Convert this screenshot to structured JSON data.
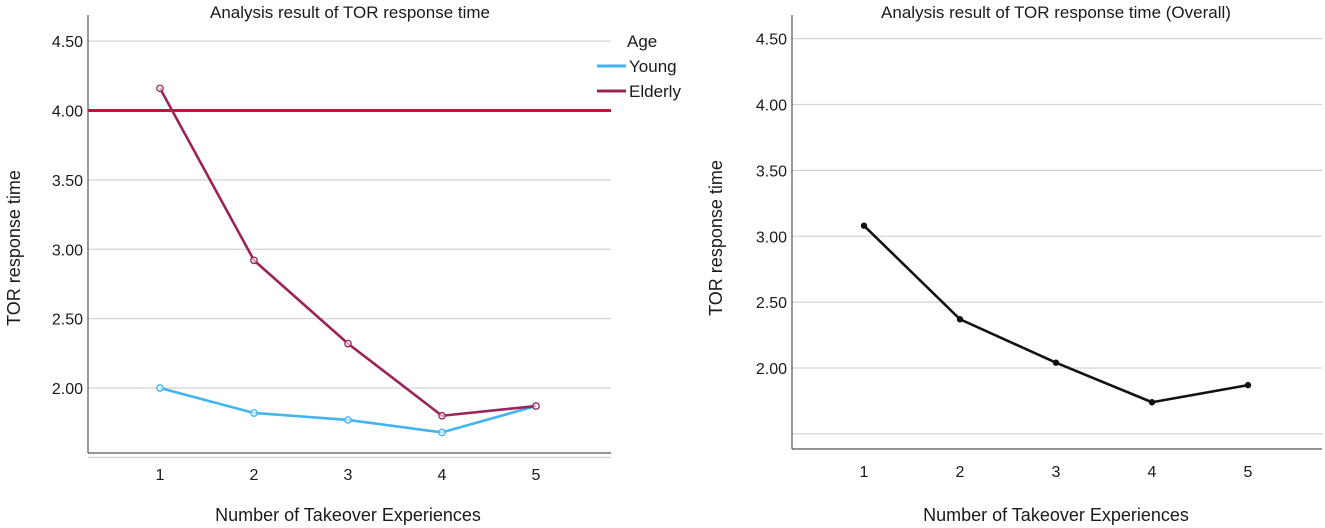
{
  "chart_data": [
    {
      "type": "line",
      "title": "Analysis result of TOR response time",
      "xlabel": "Number of Takeover Experiences",
      "ylabel": "TOR response time",
      "x": [
        1,
        2,
        3,
        4,
        5
      ],
      "x_tick_labels": [
        "1",
        "2",
        "3",
        "4",
        "5"
      ],
      "y_ticks": [
        2.0,
        2.5,
        3.0,
        3.5,
        4.0,
        4.5
      ],
      "y_tick_labels": [
        "2.00",
        "2.50",
        "3.00",
        "3.50",
        "4.00",
        "4.50"
      ],
      "ylim": [
        1.5,
        4.75
      ],
      "grid": true,
      "legend": {
        "title": "Age",
        "placement": "top-right"
      },
      "series": [
        {
          "name": "Young",
          "color": "#42b4f0",
          "values": [
            2.0,
            1.82,
            1.77,
            1.68,
            1.87
          ]
        },
        {
          "name": "Elderly",
          "color": "#9b2457",
          "values": [
            4.16,
            2.92,
            2.32,
            1.8,
            1.87
          ]
        }
      ],
      "reference_line": {
        "y": 4.0,
        "color": "#c8103e"
      }
    },
    {
      "type": "line",
      "title": "Analysis result of TOR response time (Overall)",
      "xlabel": "Number of Takeover Experiences",
      "ylabel": "TOR response time",
      "x": [
        1,
        2,
        3,
        4,
        5
      ],
      "x_tick_labels": [
        "1",
        "2",
        "3",
        "4",
        "5"
      ],
      "y_ticks": [
        2.0,
        2.5,
        3.0,
        3.5,
        4.0,
        4.5
      ],
      "y_tick_labels": [
        "2.00",
        "2.50",
        "3.00",
        "3.50",
        "4.00",
        "4.50"
      ],
      "ylim": [
        1.5,
        4.75
      ],
      "grid": true,
      "series": [
        {
          "color": "#111111",
          "values": [
            3.08,
            2.37,
            2.04,
            1.74,
            1.87
          ]
        }
      ]
    }
  ]
}
